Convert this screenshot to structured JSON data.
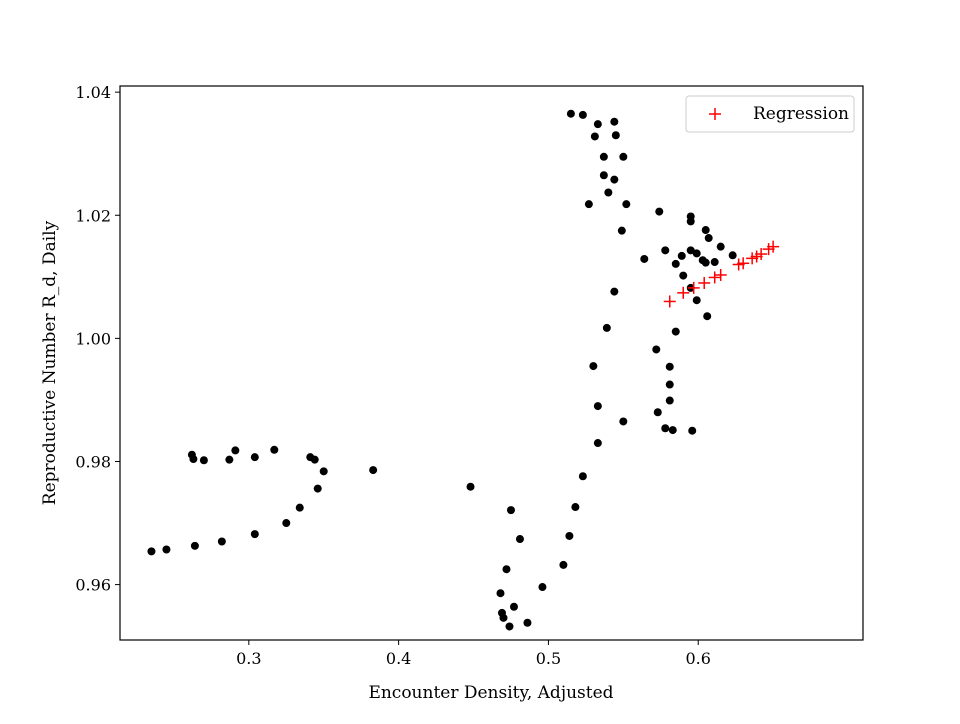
{
  "chart_data": {
    "type": "scatter",
    "xlabel": "Encounter Density, Adjusted",
    "ylabel": "Reproductive Number R_d, Daily",
    "xlim": [
      0.214,
      0.71
    ],
    "ylim": [
      0.951,
      1.041
    ],
    "xticks": [
      0.3,
      0.4,
      0.5,
      0.6
    ],
    "xtick_labels": [
      "0.3",
      "0.4",
      "0.5",
      "0.6"
    ],
    "yticks": [
      0.96,
      0.98,
      1.0,
      1.02,
      1.04
    ],
    "ytick_labels": [
      "0.96",
      "0.98",
      "1.00",
      "1.02",
      "1.04"
    ],
    "grid": false,
    "legend_position": "top-right",
    "colors": {
      "observed": "#000000",
      "regression": "#ff0000"
    },
    "series": [
      {
        "marker": "dot",
        "x": [
          0.515,
          0.523,
          0.533,
          0.544,
          0.531,
          0.545,
          0.537,
          0.55,
          0.537,
          0.544,
          0.54,
          0.552,
          0.527,
          0.549,
          0.574,
          0.595,
          0.595,
          0.605,
          0.607,
          0.578,
          0.595,
          0.589,
          0.615,
          0.564,
          0.599,
          0.603,
          0.585,
          0.605,
          0.611,
          0.623,
          0.59,
          0.595,
          0.599,
          0.606,
          0.544,
          0.539,
          0.585,
          0.572,
          0.53,
          0.581,
          0.581,
          0.581,
          0.533,
          0.573,
          0.55,
          0.578,
          0.583,
          0.596,
          0.533,
          0.523,
          0.518,
          0.475,
          0.514,
          0.481,
          0.51,
          0.472,
          0.496,
          0.468,
          0.477,
          0.469,
          0.47,
          0.486,
          0.474,
          0.448,
          0.383,
          0.262,
          0.291,
          0.317,
          0.263,
          0.27,
          0.287,
          0.304,
          0.341,
          0.344,
          0.35,
          0.346,
          0.334,
          0.325,
          0.304,
          0.282,
          0.264,
          0.245,
          0.235
        ],
        "y": [
          1.0365,
          1.0363,
          1.0348,
          1.0352,
          1.0328,
          1.033,
          1.0295,
          1.0295,
          1.0265,
          1.0258,
          1.0237,
          1.0218,
          1.0218,
          1.0175,
          1.0206,
          1.0198,
          1.019,
          1.0176,
          1.0163,
          1.0143,
          1.0143,
          1.0134,
          1.0149,
          1.0129,
          1.0138,
          1.0127,
          1.0121,
          1.0123,
          1.0124,
          1.0135,
          1.0102,
          1.0082,
          1.0062,
          1.0036,
          1.0076,
          1.0017,
          1.0011,
          0.9982,
          0.9955,
          0.9954,
          0.9925,
          0.9899,
          0.989,
          0.988,
          0.9865,
          0.9854,
          0.9851,
          0.985,
          0.983,
          0.9776,
          0.9726,
          0.9721,
          0.9679,
          0.9674,
          0.9632,
          0.9625,
          0.9596,
          0.9586,
          0.9564,
          0.9554,
          0.9546,
          0.9538,
          0.9532,
          0.9759,
          0.9786,
          0.9811,
          0.9818,
          0.9819,
          0.9804,
          0.9802,
          0.9803,
          0.9807,
          0.9807,
          0.9803,
          0.9784,
          0.9756,
          0.9725,
          0.97,
          0.9682,
          0.967,
          0.9663,
          0.9657,
          0.9654
        ]
      },
      {
        "name": "Regression",
        "marker": "plus",
        "x": [
          0.581,
          0.59,
          0.597,
          0.604,
          0.611,
          0.615,
          0.627,
          0.63,
          0.636,
          0.639,
          0.642,
          0.647,
          0.65
        ],
        "y": [
          1.006,
          1.0074,
          1.0082,
          1.009,
          1.0099,
          1.0103,
          1.012,
          1.0122,
          1.013,
          1.0133,
          1.0137,
          1.0145,
          1.0149
        ]
      }
    ]
  }
}
